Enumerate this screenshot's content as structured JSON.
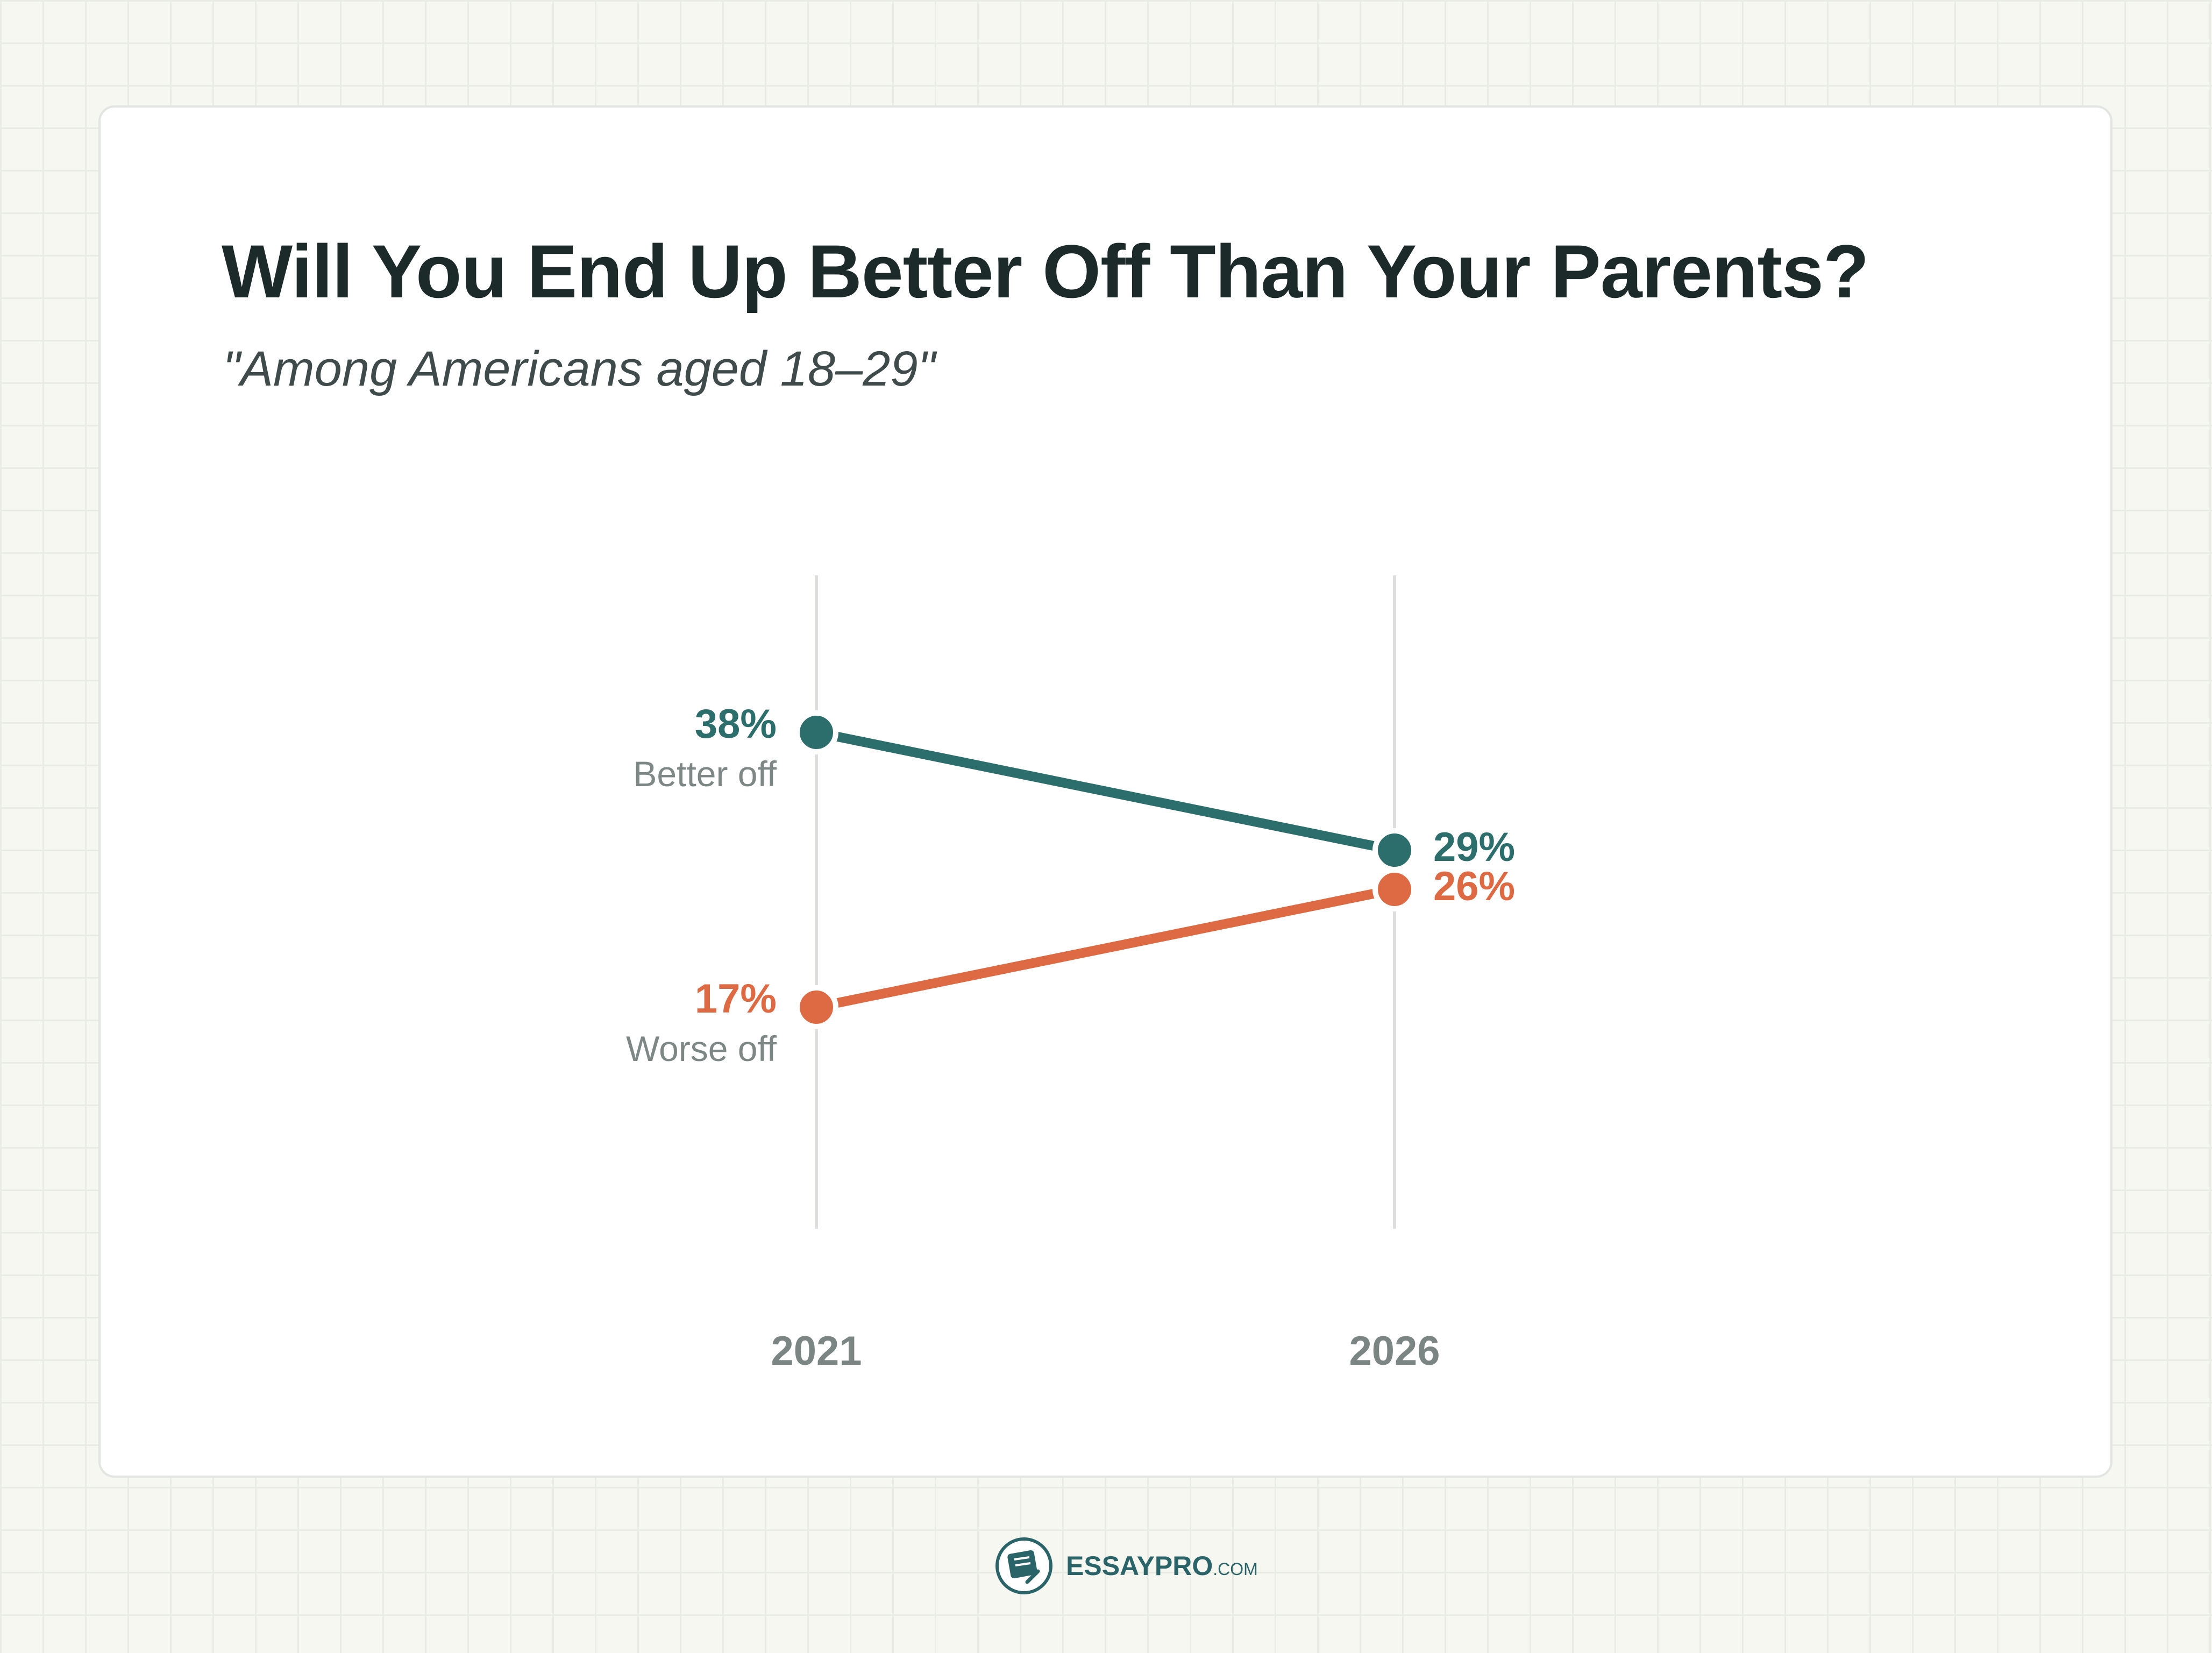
{
  "page": {
    "title": "Will You End Up Better Off Than Your Parents?",
    "subtitle": "\"Among Americans aged 18–29\""
  },
  "chart_data": {
    "type": "line",
    "title": "Will You End Up Better Off Than Your Parents?",
    "subtitle": "\"Among Americans aged 18–29\"",
    "categories": [
      "2021",
      "2026"
    ],
    "series": [
      {
        "name": "Better off",
        "values": [
          38,
          29
        ],
        "labels": [
          "38%",
          "29%"
        ],
        "color": "#2c6e6c"
      },
      {
        "name": "Worse off",
        "values": [
          17,
          26
        ],
        "labels": [
          "17%",
          "26%"
        ],
        "color": "#de6a43"
      }
    ],
    "xlabel": "",
    "ylabel": "",
    "ylim": [
      0,
      50
    ],
    "grid": false,
    "legend": "inline labels at left endpoints"
  },
  "footer": {
    "logo_icon": "essaypro-logo-icon",
    "brand": "ESSAYPRO",
    "suffix": ".COM"
  }
}
